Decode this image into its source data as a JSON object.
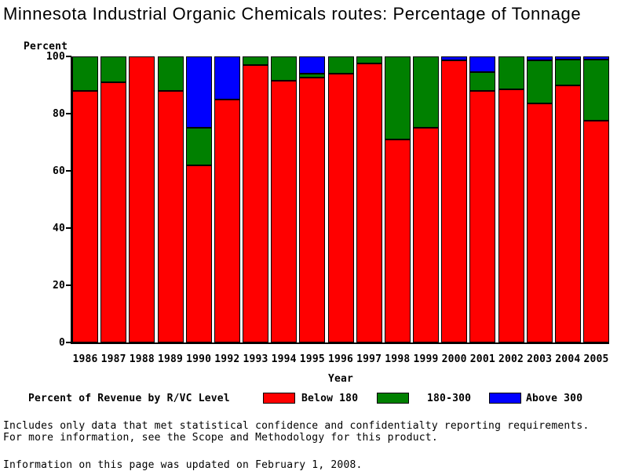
{
  "chart_data": {
    "type": "bar",
    "stacked": true,
    "title": "Minnesota Industrial Organic Chemicals routes: Percentage of Tonnage",
    "ylabel": "Percent",
    "xlabel": "Year",
    "ylim": [
      0,
      100
    ],
    "yticks": [
      0,
      20,
      40,
      60,
      80,
      100
    ],
    "legend_title": "Percent of Revenue by R/VC Level",
    "legend_position": "bottom",
    "grid": false,
    "categories": [
      "1986",
      "1987",
      "1988",
      "1989",
      "1990",
      "1992",
      "1993",
      "1994",
      "1995",
      "1996",
      "1997",
      "1998",
      "1999",
      "2000",
      "2001",
      "2002",
      "2003",
      "2004",
      "2005"
    ],
    "series": [
      {
        "name": "Below 180",
        "color": "#ff0000",
        "values": [
          88,
          91,
          100,
          88,
          62,
          85,
          97,
          91.5,
          92.5,
          94,
          97.5,
          71,
          75,
          98.5,
          88,
          88.5,
          83.5,
          90,
          77.5
        ]
      },
      {
        "name": "180-300",
        "color": "#008000",
        "values": [
          12,
          9,
          0,
          12,
          13,
          0,
          3,
          8.5,
          1.5,
          6,
          2.5,
          29,
          25,
          0,
          6.5,
          11.5,
          15,
          9,
          21.5
        ]
      },
      {
        "name": "Above 300",
        "color": "#0000ff",
        "values": [
          0,
          0,
          0,
          0,
          25,
          15,
          0,
          0,
          6,
          0,
          0,
          0,
          0,
          1.5,
          5.5,
          0,
          1.5,
          1,
          1
        ]
      }
    ]
  },
  "footer": {
    "line1": "Includes only data that met statistical confidence and confidentialty reporting requirements.",
    "line2": "For more information, see the Scope and Methodology for this product.",
    "line3": "Information on this page was updated on February 1, 2008."
  }
}
